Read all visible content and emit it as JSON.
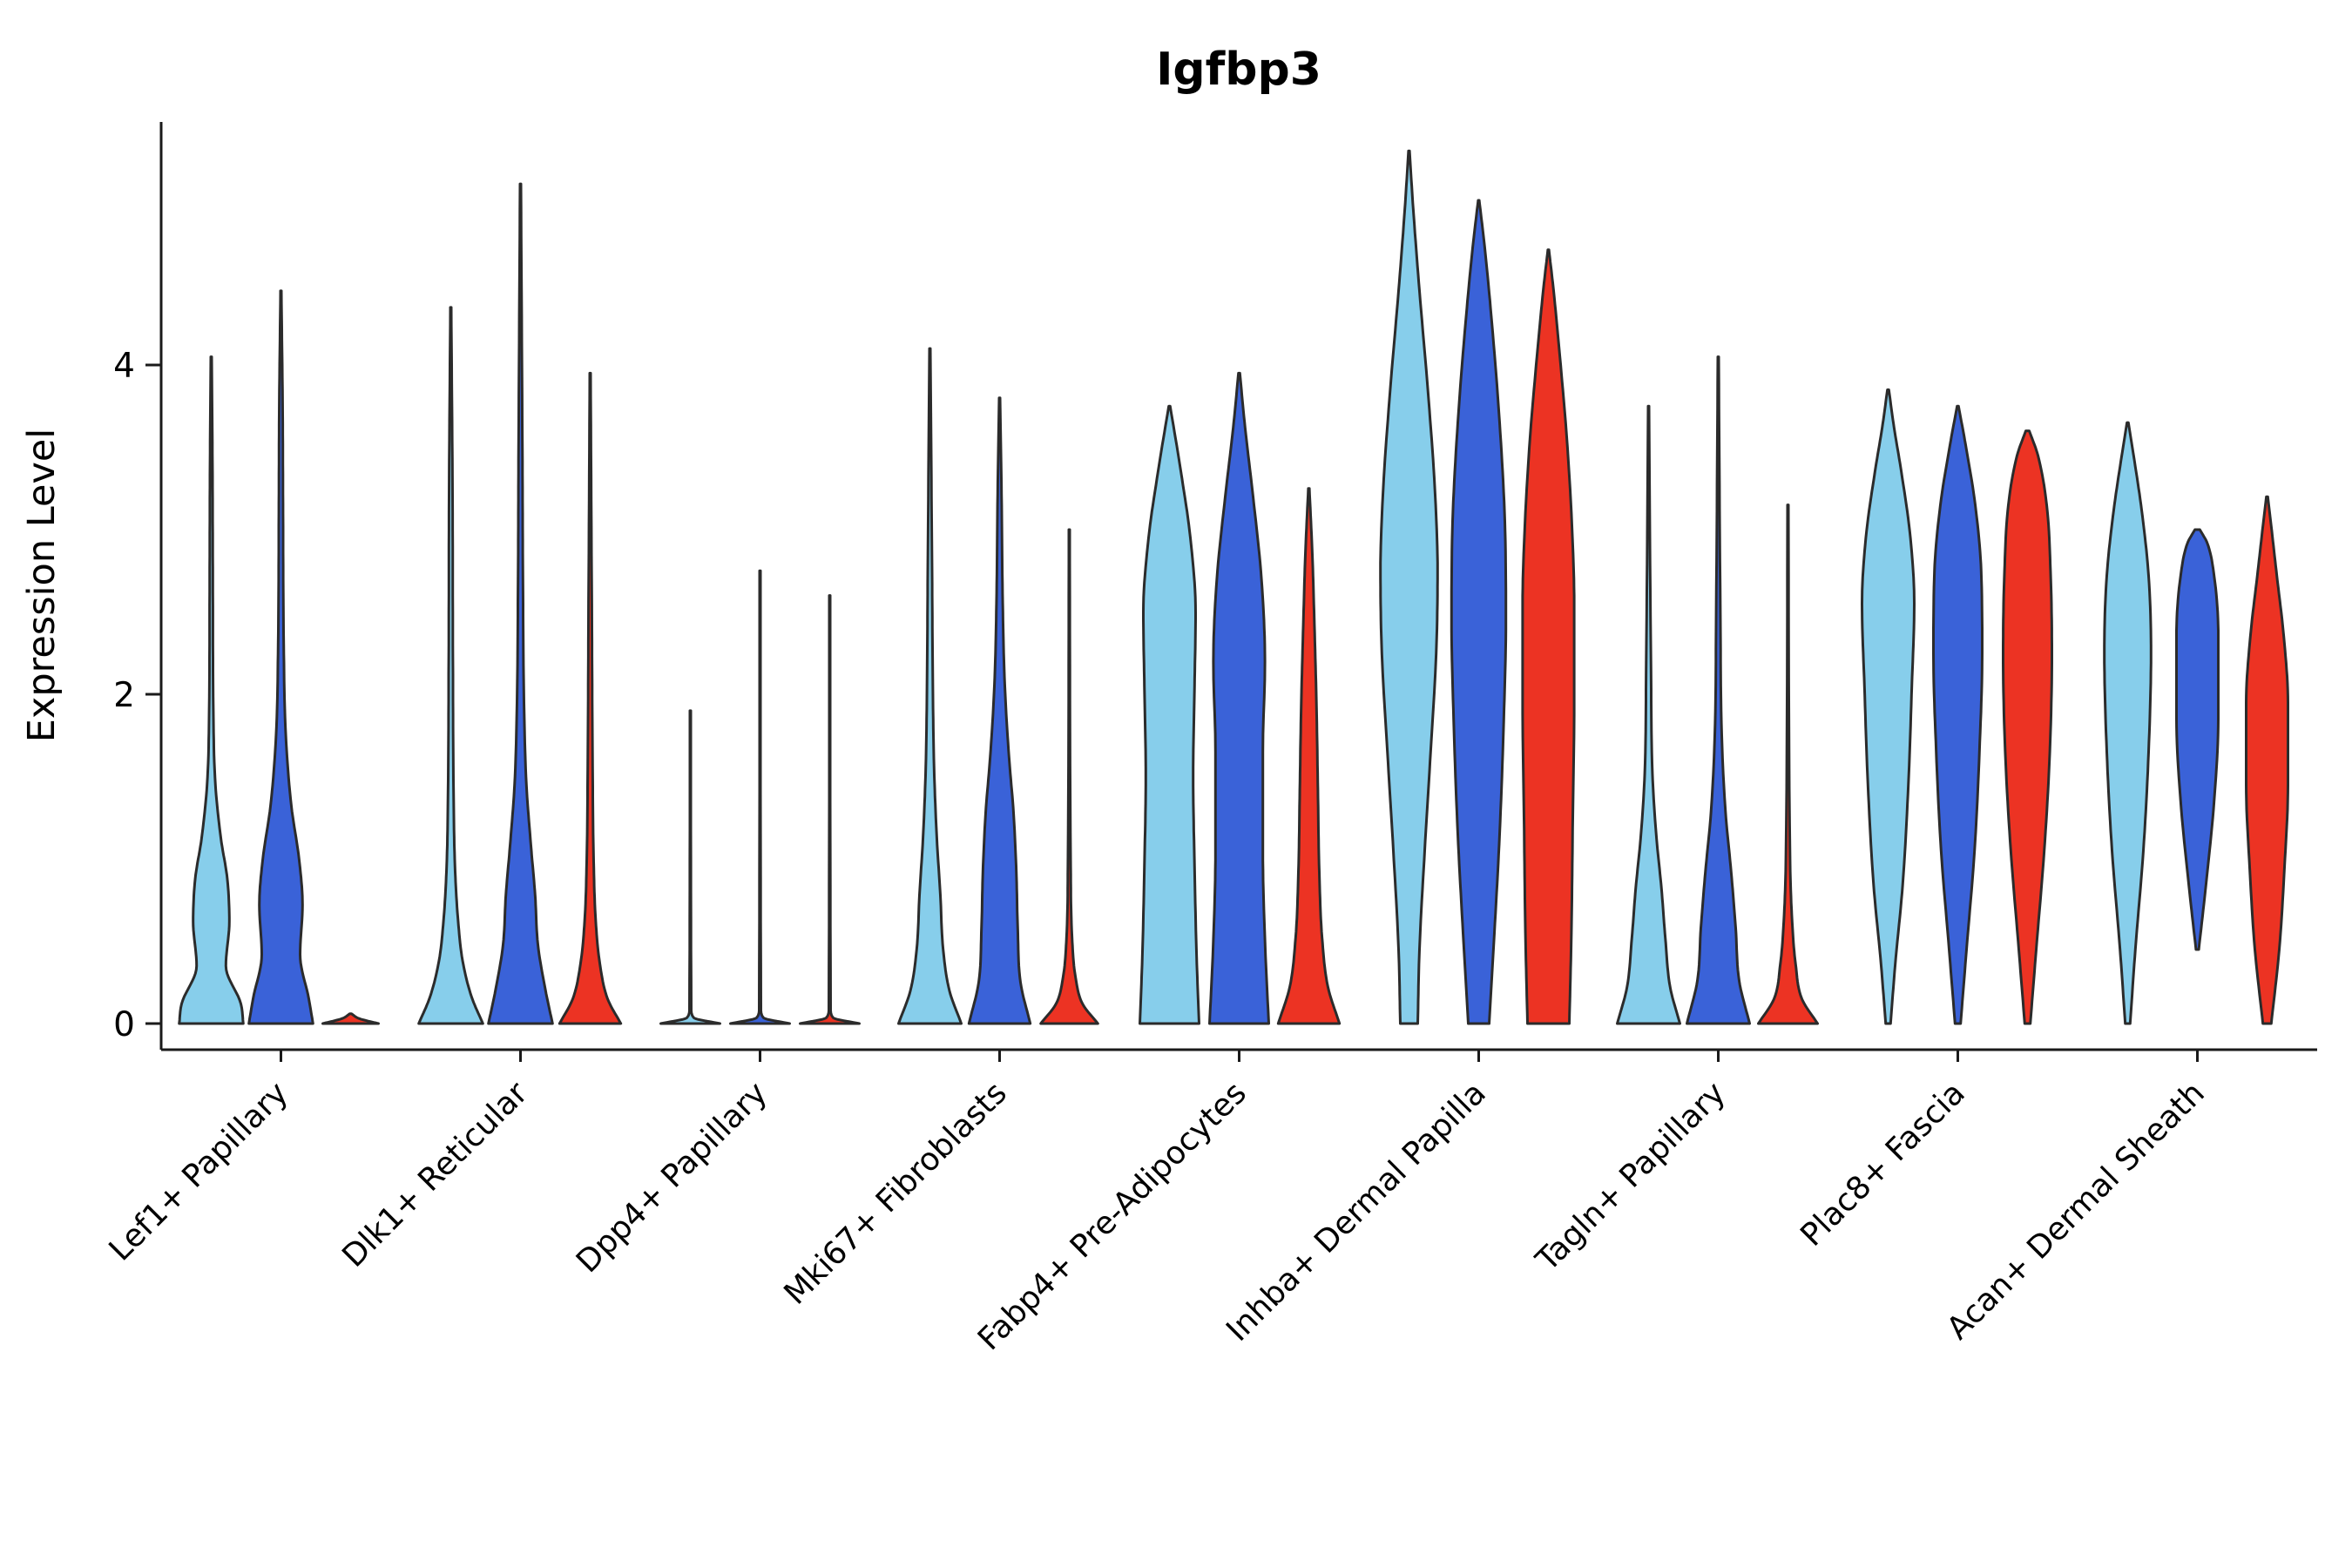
{
  "chart_data": {
    "type": "violin",
    "title": "Igfbp3",
    "ylabel": "Expression Level",
    "xlabel": "",
    "ylim": [
      -0.16,
      5.55
    ],
    "yticks": [
      0,
      2,
      4
    ],
    "grid": false,
    "legend_position": "none",
    "axis_color": "#1a1a1a",
    "violin_outline_color": "#2b2b2b",
    "categories": [
      "Lef1+ Papillary",
      "Dlk1+ Reticular",
      "Dpp4+ Papillary",
      "Mki67+ Fibroblasts",
      "Fabp4+ Pre-Adipocytes",
      "Inhba+ Dermal Papilla",
      "Tagln+ Papillary",
      "Plac8+ Fascia",
      "Acan+ Dermal Sheath"
    ],
    "series": [
      {
        "id": "series-1",
        "color": "#87CEEB"
      },
      {
        "id": "series-2",
        "color": "#3A62D8"
      },
      {
        "id": "series-3",
        "color": "#EC3323"
      }
    ],
    "violins": [
      {
        "category": "Lef1+ Papillary",
        "category_index": 0,
        "series_index": 0,
        "peak": 4.05,
        "profile": [
          [
            0,
            0.92
          ],
          [
            0.12,
            0.85
          ],
          [
            0.35,
            0.42
          ],
          [
            0.62,
            0.52
          ],
          [
            0.88,
            0.46
          ],
          [
            1.12,
            0.28
          ],
          [
            1.45,
            0.12
          ],
          [
            1.9,
            0.06
          ],
          [
            2.7,
            0.045
          ],
          [
            3.4,
            0.035
          ],
          [
            4.05,
            0.012
          ]
        ]
      },
      {
        "category": "Lef1+ Papillary",
        "category_index": 0,
        "series_index": 1,
        "peak": 4.45,
        "profile": [
          [
            0,
            0.92
          ],
          [
            0.15,
            0.8
          ],
          [
            0.42,
            0.55
          ],
          [
            0.72,
            0.62
          ],
          [
            1.0,
            0.52
          ],
          [
            1.32,
            0.3
          ],
          [
            1.75,
            0.14
          ],
          [
            2.3,
            0.08
          ],
          [
            3.1,
            0.06
          ],
          [
            3.7,
            0.05
          ],
          [
            4.45,
            0.012
          ]
        ]
      },
      {
        "category": "Lef1+ Papillary",
        "category_index": 0,
        "series_index": 2,
        "peak": 0.06,
        "profile": [
          [
            0,
            0.8
          ],
          [
            0.03,
            0.25
          ],
          [
            0.06,
            0.02
          ]
        ]
      },
      {
        "category": "Dlk1+ Reticular",
        "category_index": 1,
        "series_index": 0,
        "peak": 4.35,
        "profile": [
          [
            0,
            0.92
          ],
          [
            0.16,
            0.6
          ],
          [
            0.38,
            0.34
          ],
          [
            0.65,
            0.2
          ],
          [
            0.95,
            0.12
          ],
          [
            1.4,
            0.08
          ],
          [
            2.2,
            0.06
          ],
          [
            3.2,
            0.05
          ],
          [
            4.35,
            0.012
          ]
        ]
      },
      {
        "category": "Dlk1+ Reticular",
        "category_index": 1,
        "series_index": 1,
        "peak": 5.1,
        "profile": [
          [
            0,
            0.92
          ],
          [
            0.2,
            0.72
          ],
          [
            0.48,
            0.5
          ],
          [
            0.78,
            0.42
          ],
          [
            1.08,
            0.3
          ],
          [
            1.45,
            0.17
          ],
          [
            1.95,
            0.1
          ],
          [
            2.7,
            0.07
          ],
          [
            3.5,
            0.055
          ],
          [
            5.1,
            0.012
          ]
        ]
      },
      {
        "category": "Dlk1+ Reticular",
        "category_index": 1,
        "series_index": 2,
        "peak": 3.95,
        "profile": [
          [
            0,
            0.88
          ],
          [
            0.15,
            0.5
          ],
          [
            0.36,
            0.28
          ],
          [
            0.62,
            0.16
          ],
          [
            0.98,
            0.1
          ],
          [
            1.55,
            0.07
          ],
          [
            2.4,
            0.05
          ],
          [
            3.95,
            0.012
          ]
        ]
      },
      {
        "category": "Dpp4+ Papillary",
        "category_index": 2,
        "series_index": 0,
        "peak": 1.9,
        "profile": [
          [
            0,
            0.85
          ],
          [
            0.035,
            0.1
          ],
          [
            0.09,
            0.025
          ],
          [
            1.9,
            0.012
          ]
        ]
      },
      {
        "category": "Dpp4+ Papillary",
        "category_index": 2,
        "series_index": 1,
        "peak": 2.75,
        "profile": [
          [
            0,
            0.85
          ],
          [
            0.035,
            0.1
          ],
          [
            0.09,
            0.025
          ],
          [
            2.75,
            0.012
          ]
        ]
      },
      {
        "category": "Dpp4+ Papillary",
        "category_index": 2,
        "series_index": 2,
        "peak": 2.6,
        "profile": [
          [
            0,
            0.85
          ],
          [
            0.035,
            0.1
          ],
          [
            0.09,
            0.025
          ],
          [
            2.6,
            0.012
          ]
        ]
      },
      {
        "category": "Mki67+ Fibroblasts",
        "category_index": 3,
        "series_index": 0,
        "peak": 4.1,
        "profile": [
          [
            0,
            0.9
          ],
          [
            0.2,
            0.56
          ],
          [
            0.45,
            0.38
          ],
          [
            0.78,
            0.3
          ],
          [
            1.12,
            0.2
          ],
          [
            1.55,
            0.12
          ],
          [
            2.15,
            0.08
          ],
          [
            2.8,
            0.06
          ],
          [
            4.1,
            0.012
          ]
        ]
      },
      {
        "category": "Mki67+ Fibroblasts",
        "category_index": 3,
        "series_index": 1,
        "peak": 3.8,
        "profile": [
          [
            0,
            0.88
          ],
          [
            0.25,
            0.6
          ],
          [
            0.58,
            0.52
          ],
          [
            0.92,
            0.48
          ],
          [
            1.28,
            0.4
          ],
          [
            1.62,
            0.27
          ],
          [
            2.05,
            0.15
          ],
          [
            2.55,
            0.09
          ],
          [
            3.15,
            0.06
          ],
          [
            3.8,
            0.012
          ]
        ]
      },
      {
        "category": "Mki67+ Fibroblasts",
        "category_index": 3,
        "series_index": 2,
        "peak": 3.0,
        "profile": [
          [
            0,
            0.82
          ],
          [
            0.12,
            0.38
          ],
          [
            0.28,
            0.18
          ],
          [
            0.52,
            0.08
          ],
          [
            0.95,
            0.04
          ],
          [
            3.0,
            0.012
          ]
        ]
      },
      {
        "category": "Fabp4+ Pre-Adipocytes",
        "category_index": 4,
        "series_index": 0,
        "peak": 3.75,
        "profile": [
          [
            0,
            0.85
          ],
          [
            0.4,
            0.78
          ],
          [
            0.95,
            0.72
          ],
          [
            1.5,
            0.68
          ],
          [
            2.05,
            0.72
          ],
          [
            2.5,
            0.75
          ],
          [
            2.95,
            0.6
          ],
          [
            3.35,
            0.33
          ],
          [
            3.75,
            0.02
          ]
        ]
      },
      {
        "category": "Fabp4+ Pre-Adipocytes",
        "category_index": 4,
        "series_index": 1,
        "peak": 3.95,
        "profile": [
          [
            0,
            0.85
          ],
          [
            0.45,
            0.75
          ],
          [
            1.05,
            0.68
          ],
          [
            1.65,
            0.68
          ],
          [
            2.2,
            0.74
          ],
          [
            2.7,
            0.64
          ],
          [
            3.2,
            0.4
          ],
          [
            3.62,
            0.17
          ],
          [
            3.95,
            0.02
          ]
        ]
      },
      {
        "category": "Fabp4+ Pre-Adipocytes",
        "category_index": 4,
        "series_index": 2,
        "peak": 3.25,
        "profile": [
          [
            0,
            0.88
          ],
          [
            0.22,
            0.55
          ],
          [
            0.52,
            0.38
          ],
          [
            0.92,
            0.3
          ],
          [
            1.42,
            0.26
          ],
          [
            1.92,
            0.22
          ],
          [
            2.42,
            0.16
          ],
          [
            2.85,
            0.1
          ],
          [
            3.25,
            0.015
          ]
        ]
      },
      {
        "category": "Inhba+ Dermal Papilla",
        "category_index": 5,
        "series_index": 0,
        "peak": 5.3,
        "profile": [
          [
            0,
            0.25
          ],
          [
            0.45,
            0.3
          ],
          [
            1.05,
            0.45
          ],
          [
            1.65,
            0.62
          ],
          [
            2.25,
            0.78
          ],
          [
            2.75,
            0.82
          ],
          [
            3.25,
            0.74
          ],
          [
            3.85,
            0.54
          ],
          [
            4.45,
            0.3
          ],
          [
            4.95,
            0.12
          ],
          [
            5.3,
            0.015
          ]
        ]
      },
      {
        "category": "Inhba+ Dermal Papilla",
        "category_index": 5,
        "series_index": 1,
        "peak": 5.0,
        "profile": [
          [
            0,
            0.3
          ],
          [
            0.55,
            0.45
          ],
          [
            1.15,
            0.6
          ],
          [
            1.85,
            0.72
          ],
          [
            2.45,
            0.78
          ],
          [
            3.05,
            0.75
          ],
          [
            3.65,
            0.6
          ],
          [
            4.25,
            0.38
          ],
          [
            4.72,
            0.17
          ],
          [
            5.0,
            0.015
          ]
        ]
      },
      {
        "category": "Inhba+ Dermal Papilla",
        "category_index": 5,
        "series_index": 2,
        "peak": 4.7,
        "profile": [
          [
            0,
            0.6
          ],
          [
            0.55,
            0.66
          ],
          [
            1.25,
            0.7
          ],
          [
            1.95,
            0.74
          ],
          [
            2.55,
            0.74
          ],
          [
            3.05,
            0.67
          ],
          [
            3.55,
            0.53
          ],
          [
            4.05,
            0.33
          ],
          [
            4.45,
            0.15
          ],
          [
            4.7,
            0.015
          ]
        ]
      },
      {
        "category": "Tagln+ Papillary",
        "category_index": 6,
        "series_index": 0,
        "peak": 3.75,
        "profile": [
          [
            0,
            0.9
          ],
          [
            0.22,
            0.62
          ],
          [
            0.52,
            0.48
          ],
          [
            0.82,
            0.37
          ],
          [
            1.12,
            0.23
          ],
          [
            1.52,
            0.11
          ],
          [
            2.15,
            0.07
          ],
          [
            3.75,
            0.012
          ]
        ]
      },
      {
        "category": "Tagln+ Papillary",
        "category_index": 6,
        "series_index": 1,
        "peak": 4.05,
        "profile": [
          [
            0,
            0.9
          ],
          [
            0.26,
            0.6
          ],
          [
            0.58,
            0.5
          ],
          [
            0.92,
            0.37
          ],
          [
            1.28,
            0.21
          ],
          [
            1.75,
            0.1
          ],
          [
            2.5,
            0.06
          ],
          [
            4.05,
            0.012
          ]
        ]
      },
      {
        "category": "Tagln+ Papillary",
        "category_index": 6,
        "series_index": 2,
        "peak": 3.15,
        "profile": [
          [
            0,
            0.85
          ],
          [
            0.15,
            0.4
          ],
          [
            0.36,
            0.22
          ],
          [
            0.62,
            0.12
          ],
          [
            1.0,
            0.06
          ],
          [
            3.15,
            0.012
          ]
        ]
      },
      {
        "category": "Plac8+ Fascia",
        "category_index": 7,
        "series_index": 0,
        "peak": 3.85,
        "profile": [
          [
            0,
            0.07
          ],
          [
            0.35,
            0.2
          ],
          [
            0.85,
            0.42
          ],
          [
            1.45,
            0.58
          ],
          [
            2.05,
            0.68
          ],
          [
            2.55,
            0.75
          ],
          [
            2.95,
            0.64
          ],
          [
            3.35,
            0.38
          ],
          [
            3.62,
            0.17
          ],
          [
            3.85,
            0.02
          ]
        ]
      },
      {
        "category": "Plac8+ Fascia",
        "category_index": 7,
        "series_index": 1,
        "peak": 3.75,
        "profile": [
          [
            0,
            0.08
          ],
          [
            0.45,
            0.25
          ],
          [
            1.05,
            0.48
          ],
          [
            1.65,
            0.62
          ],
          [
            2.25,
            0.7
          ],
          [
            2.75,
            0.67
          ],
          [
            3.15,
            0.5
          ],
          [
            3.52,
            0.22
          ],
          [
            3.75,
            0.02
          ]
        ]
      },
      {
        "category": "Plac8+ Fascia",
        "category_index": 7,
        "series_index": 2,
        "peak": 3.6,
        "profile": [
          [
            0,
            0.08
          ],
          [
            0.45,
            0.25
          ],
          [
            1.05,
            0.48
          ],
          [
            1.65,
            0.64
          ],
          [
            2.25,
            0.7
          ],
          [
            2.75,
            0.66
          ],
          [
            3.15,
            0.55
          ],
          [
            3.45,
            0.3
          ],
          [
            3.6,
            0.05
          ]
        ]
      },
      {
        "category": "Acan+ Dermal Sheath",
        "category_index": 8,
        "series_index": 0,
        "peak": 3.65,
        "profile": [
          [
            0,
            0.07
          ],
          [
            0.45,
            0.22
          ],
          [
            1.05,
            0.45
          ],
          [
            1.65,
            0.6
          ],
          [
            2.25,
            0.67
          ],
          [
            2.72,
            0.6
          ],
          [
            3.12,
            0.4
          ],
          [
            3.45,
            0.17
          ],
          [
            3.65,
            0.02
          ]
        ]
      },
      {
        "category": "Acan+ Dermal Sheath",
        "category_index": 8,
        "series_index": 1,
        "peak": 3.0,
        "profile": [
          [
            0.45,
            0.04
          ],
          [
            0.85,
            0.25
          ],
          [
            1.35,
            0.48
          ],
          [
            1.85,
            0.6
          ],
          [
            2.35,
            0.6
          ],
          [
            2.72,
            0.48
          ],
          [
            2.92,
            0.28
          ],
          [
            3.0,
            0.07
          ]
        ]
      },
      {
        "category": "Acan+ Dermal Sheath",
        "category_index": 8,
        "series_index": 2,
        "peak": 3.2,
        "profile": [
          [
            0,
            0.12
          ],
          [
            0.45,
            0.35
          ],
          [
            0.95,
            0.5
          ],
          [
            1.45,
            0.6
          ],
          [
            1.95,
            0.6
          ],
          [
            2.35,
            0.48
          ],
          [
            2.72,
            0.28
          ],
          [
            3.02,
            0.12
          ],
          [
            3.2,
            0.02
          ]
        ]
      }
    ]
  }
}
